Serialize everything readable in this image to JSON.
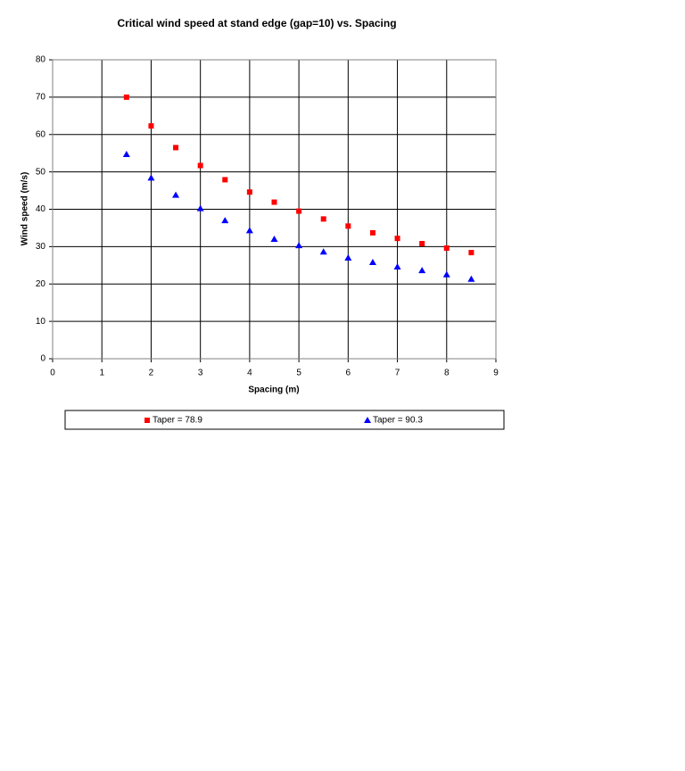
{
  "chart_data": {
    "type": "scatter",
    "title": "Critical wind speed at stand edge (gap=10) vs. Spacing",
    "x_label": "Spacing (m)",
    "y_label": "Wind speed (m/s)",
    "xlim": [
      0,
      9
    ],
    "xticks": [
      0,
      1,
      2,
      3,
      4,
      5,
      6,
      7,
      8,
      9
    ],
    "ylim": [
      0,
      80
    ],
    "yticks": [
      0,
      10,
      20,
      30,
      40,
      50,
      60,
      70,
      80
    ],
    "grid": true,
    "legend": "bottom",
    "series": [
      {
        "name": "Taper = 78.9",
        "color": "#ff0000",
        "marker": "square",
        "x": [
          1.5,
          2,
          2.5,
          3,
          3.5,
          4,
          4.5,
          5,
          5.5,
          6,
          6.5,
          7,
          7.5,
          8,
          8.5
        ],
        "values": [
          70.0,
          62.3,
          56.5,
          51.7,
          47.9,
          44.6,
          41.9,
          39.5,
          37.4,
          35.5,
          33.7,
          32.2,
          30.8,
          29.6,
          28.4
        ]
      },
      {
        "name": "Taper = 90.3",
        "color": "#0000ff",
        "marker": "triangle",
        "x": [
          1.5,
          2,
          2.5,
          3,
          3.5,
          4,
          4.5,
          5,
          5.5,
          6,
          6.5,
          7,
          7.5,
          8,
          8.5
        ],
        "values": [
          54.7,
          48.4,
          43.8,
          40.2,
          37.0,
          34.3,
          32.0,
          30.3,
          28.6,
          27.0,
          25.8,
          24.6,
          23.6,
          22.5,
          21.3
        ]
      }
    ]
  }
}
